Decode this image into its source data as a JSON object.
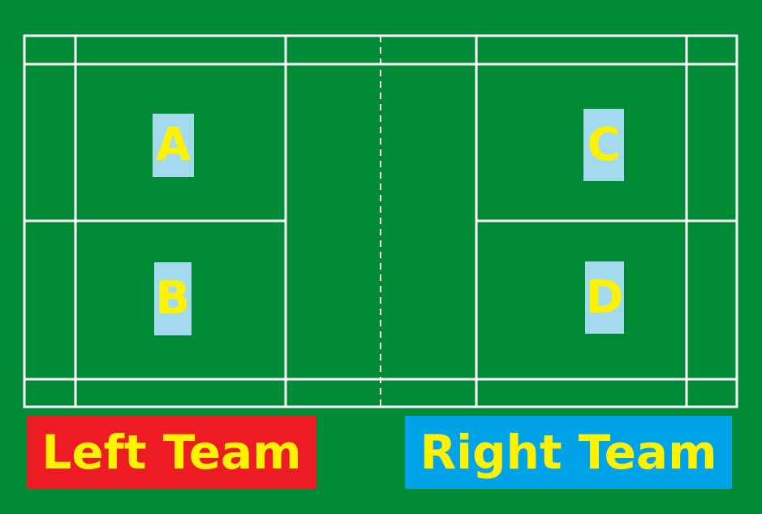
{
  "court": {
    "surface_color": "#008A35",
    "line_color": "#FFFFFF"
  },
  "players": [
    {
      "id": "a",
      "label": "A",
      "box_color": "#A3DAEE",
      "text_color": "#FFF200"
    },
    {
      "id": "b",
      "label": "B",
      "box_color": "#A3DAEE",
      "text_color": "#FFF200"
    },
    {
      "id": "c",
      "label": "C",
      "box_color": "#A3DAEE",
      "text_color": "#FFF200"
    },
    {
      "id": "d",
      "label": "D",
      "box_color": "#A3DAEE",
      "text_color": "#FFF200"
    }
  ],
  "teams": {
    "left": {
      "label": "Left Team",
      "bg_color": "#ED1C24",
      "text_color": "#FFF200"
    },
    "right": {
      "label": "Right Team",
      "bg_color": "#00A2E8",
      "text_color": "#FFF200"
    }
  }
}
